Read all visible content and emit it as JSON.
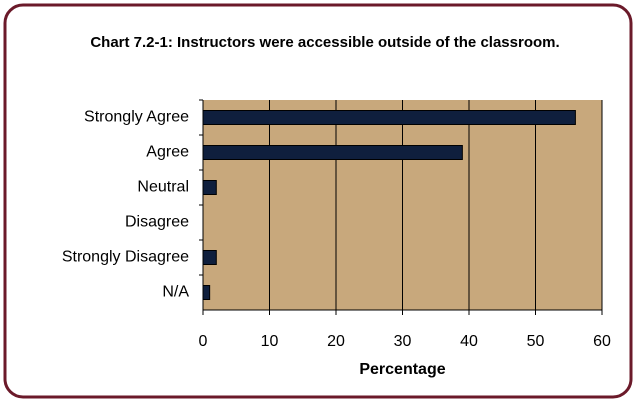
{
  "chart_data": {
    "type": "bar",
    "orientation": "horizontal",
    "title": "Chart 7.2-1: Instructors were accessible outside of the classroom.",
    "categories": [
      "Strongly Agree",
      "Agree",
      "Neutral",
      "Disagree",
      "Strongly Disagree",
      "N/A"
    ],
    "values": [
      56,
      39,
      2,
      0,
      2,
      1
    ],
    "color": "#0f1f3d",
    "xlim": [
      0,
      60
    ],
    "xticks": [
      0,
      10,
      20,
      30,
      40,
      50,
      60
    ],
    "xlabel": "Percentage",
    "grid": true
  }
}
